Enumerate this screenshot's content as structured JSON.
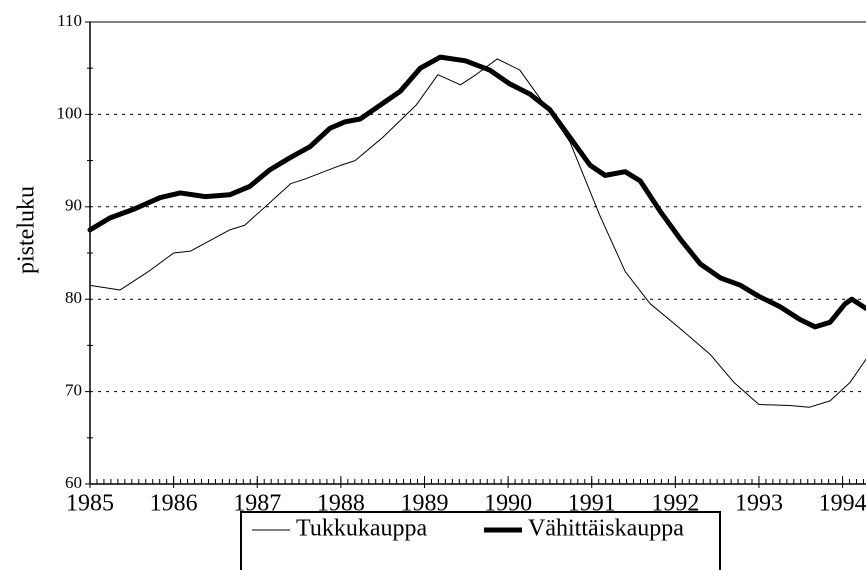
{
  "chart_data": {
    "type": "line",
    "ylabel": "pisteluku",
    "xlim": [
      1985,
      1994.28
    ],
    "xticks": [
      1985,
      1986,
      1987,
      1988,
      1989,
      1990,
      1991,
      1992,
      1993,
      1994
    ],
    "ylim": [
      60,
      110
    ],
    "yticks": [
      60,
      70,
      80,
      90,
      100,
      110
    ],
    "grid": true,
    "legend": "bottom",
    "series": [
      {
        "name": "Tukkukauppa",
        "color": "#000000",
        "linewidth": 1,
        "x": [
          1985,
          1985.36,
          1985.7,
          1986.0,
          1986.2,
          1986.67,
          1986.85,
          1987.4,
          1987.57,
          1988.0,
          1988.17,
          1988.5,
          1988.9,
          1989.16,
          1989.43,
          1989.6,
          1989.87,
          1990.14,
          1990.44,
          1990.74,
          1991.1,
          1991.4,
          1991.7,
          1992.06,
          1992.42,
          1992.7,
          1993.0,
          1993.37,
          1993.6,
          1993.85,
          1994.09,
          1994.28
        ],
        "values": [
          81.5,
          81,
          83,
          85,
          85.2,
          87.5,
          88,
          92.5,
          93,
          94.5,
          95,
          97.5,
          101,
          104.3,
          103.2,
          104.2,
          106,
          104.8,
          101,
          97,
          89,
          83,
          79.5,
          76.8,
          74,
          71,
          68.6,
          68.5,
          68.3,
          69,
          71,
          73.5
        ]
      },
      {
        "name": "Vähittäiskauppa",
        "color": "#000000",
        "linewidth": 5,
        "x": [
          1985,
          1985.24,
          1985.54,
          1985.84,
          1986.08,
          1986.38,
          1986.67,
          1986.91,
          1987.15,
          1987.39,
          1987.63,
          1987.87,
          1988.05,
          1988.23,
          1988.47,
          1988.71,
          1988.95,
          1989.19,
          1989.49,
          1989.78,
          1990.02,
          1990.26,
          1990.5,
          1990.74,
          1990.98,
          1991.16,
          1991.4,
          1991.58,
          1991.82,
          1992.06,
          1992.3,
          1992.54,
          1992.78,
          1993.0,
          1993.25,
          1993.49,
          1993.67,
          1993.85,
          1994.03,
          1994.11,
          1994.28
        ],
        "values": [
          87.5,
          88.8,
          89.8,
          91,
          91.5,
          91.1,
          91.3,
          92.2,
          94,
          95.3,
          96.5,
          98.5,
          99.2,
          99.5,
          101,
          102.5,
          105,
          106.2,
          105.8,
          104.8,
          103.3,
          102.2,
          100.5,
          97.5,
          94.5,
          93.4,
          93.8,
          92.8,
          89.5,
          86.5,
          83.8,
          82.3,
          81.5,
          80.3,
          79.2,
          77.8,
          77,
          77.5,
          79.5,
          80,
          79
        ]
      }
    ]
  }
}
